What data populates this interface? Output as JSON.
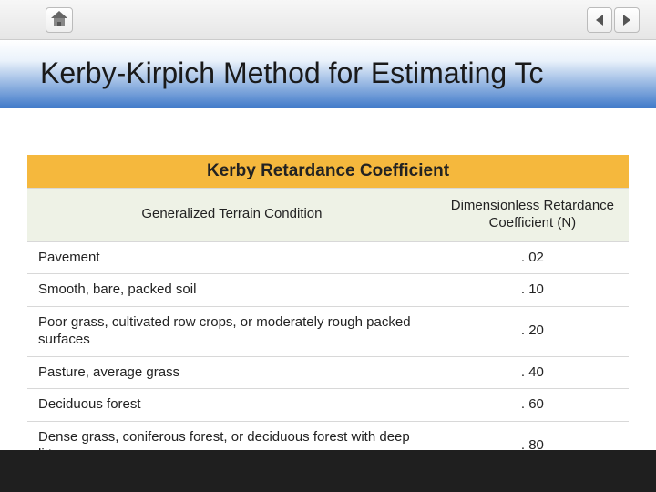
{
  "slide": {
    "title": "Kerby-Kirpich Method for Estimating Tc"
  },
  "table": {
    "banner": "Kerby Retardance Coefficient",
    "columns": {
      "condition": "Generalized Terrain Condition",
      "coefficient": "Dimensionless Retardance Coefficient (N)"
    },
    "rows": [
      {
        "condition": "Pavement",
        "n": ". 02"
      },
      {
        "condition": "Smooth, bare, packed soil",
        "n": ". 10"
      },
      {
        "condition": "Poor grass, cultivated row crops, or moderately rough packed surfaces",
        "n": ". 20"
      },
      {
        "condition": "Pasture, average grass",
        "n": ". 40"
      },
      {
        "condition": "Deciduous forest",
        "n": ". 60"
      },
      {
        "condition": "Dense grass, coniferous forest, or deciduous forest with deep litter",
        "n": ". 80"
      }
    ]
  },
  "colors": {
    "banner_bg": "#f5b83d",
    "header_bg": "#eef2e6",
    "row_border": "#d8d8d8",
    "title_gradient_top": "#ffffff",
    "title_gradient_bottom": "#3f79c9",
    "footer_bg": "#1f1f1f"
  }
}
